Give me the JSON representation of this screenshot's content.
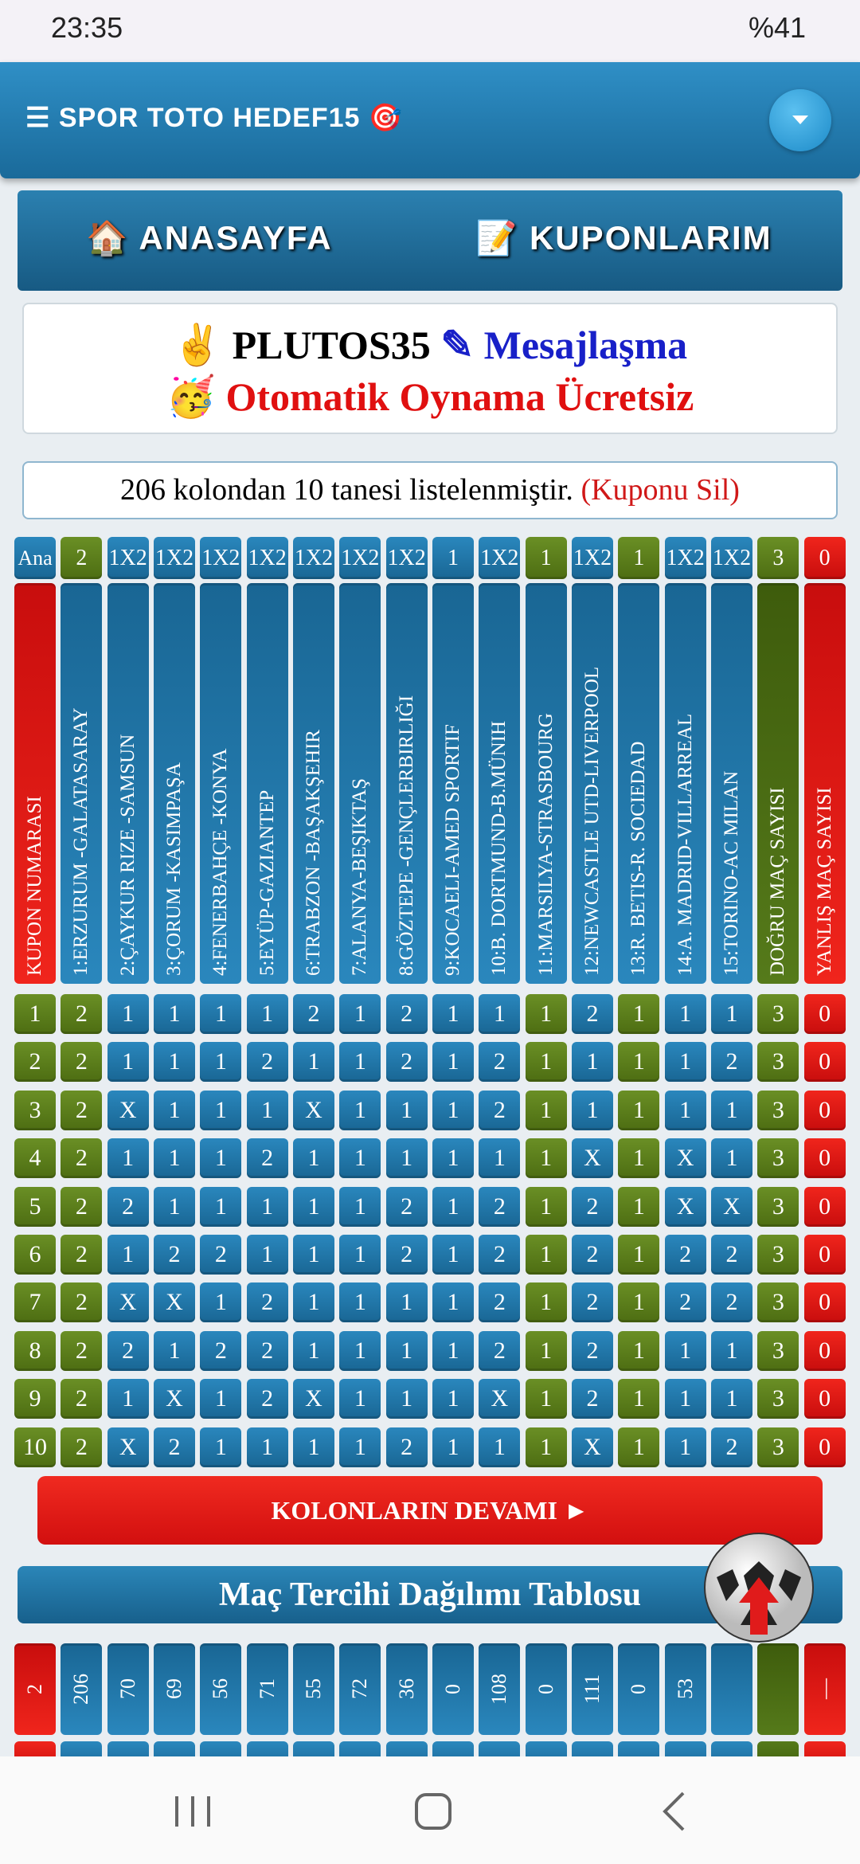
{
  "status_bar": {
    "time": "23:35",
    "battery": "%41"
  },
  "app_bar": {
    "title": "☰ SPOR TOTO HEDEF15 🎯"
  },
  "nav": {
    "home": "🏠 ANASAYFA",
    "coupons": "📝 KUPONLARIM"
  },
  "user": {
    "name": "✌ PLUTOS35",
    "link": "✎ Mesajlaşma",
    "promo": "🥳 Otomatik Oynama Ücretsiz"
  },
  "summary": {
    "text": "206 kolondan 10 tanesi listelenmiştir.",
    "link": "(Kuponu Sil)"
  },
  "table": {
    "top_row": [
      "Ana",
      "2",
      "1X2",
      "1X2",
      "1X2",
      "1X2",
      "1X2",
      "1X2",
      "1X2",
      "1",
      "1X2",
      "1",
      "1X2",
      "1",
      "1X2",
      "1X2",
      "3",
      "0"
    ],
    "headers": [
      "KUPON NUMARASI",
      "1:ERZURUM -GALATASARAY",
      "2:ÇAYKUR RIZE -SAMSUN",
      "3:ÇORUM -KASIMPAŞA",
      "4:FENERBAHÇE -KONYA",
      "5:EYÜP-GAZIANTEP",
      "6:TRABZON -BAŞAKŞEHIR",
      "7:ALANYA-BEŞIKTAŞ",
      "8:GÖZTEPE -GENÇLERBIRLIĞI",
      "9:KOCAELI-AMED SPORTIF",
      "10:B. DORTMUND-B.MÜNIH",
      "11:MARSILYA-STRASBOURG",
      "12:NEWCASTLE UTD-LIVERPOOL",
      "13:R. BETIS-R. SOCIEDAD",
      "14:A. MADRID-VILLARREAL",
      "15:TORINO-AC MILAN",
      "DOĞRU MAÇ SAYISI",
      "YANLIŞ MAÇ SAYISI"
    ],
    "rows": [
      [
        "1",
        "2",
        "1",
        "1",
        "1",
        "1",
        "2",
        "1",
        "2",
        "1",
        "1",
        "1",
        "2",
        "1",
        "1",
        "1",
        "3",
        "0"
      ],
      [
        "2",
        "2",
        "1",
        "1",
        "1",
        "2",
        "1",
        "1",
        "2",
        "1",
        "2",
        "1",
        "1",
        "1",
        "1",
        "2",
        "3",
        "0"
      ],
      [
        "3",
        "2",
        "X",
        "1",
        "1",
        "1",
        "X",
        "1",
        "1",
        "1",
        "2",
        "1",
        "1",
        "1",
        "1",
        "1",
        "3",
        "0"
      ],
      [
        "4",
        "2",
        "1",
        "1",
        "1",
        "2",
        "1",
        "1",
        "1",
        "1",
        "1",
        "1",
        "X",
        "1",
        "X",
        "1",
        "3",
        "0"
      ],
      [
        "5",
        "2",
        "2",
        "1",
        "1",
        "1",
        "1",
        "1",
        "2",
        "1",
        "2",
        "1",
        "2",
        "1",
        "X",
        "X",
        "3",
        "0"
      ],
      [
        "6",
        "2",
        "1",
        "2",
        "2",
        "1",
        "1",
        "1",
        "2",
        "1",
        "2",
        "1",
        "2",
        "1",
        "2",
        "2",
        "3",
        "0"
      ],
      [
        "7",
        "2",
        "X",
        "X",
        "1",
        "2",
        "1",
        "1",
        "1",
        "1",
        "2",
        "1",
        "2",
        "1",
        "2",
        "2",
        "3",
        "0"
      ],
      [
        "8",
        "2",
        "2",
        "1",
        "2",
        "2",
        "1",
        "1",
        "1",
        "1",
        "2",
        "1",
        "2",
        "1",
        "1",
        "1",
        "3",
        "0"
      ],
      [
        "9",
        "2",
        "1",
        "X",
        "1",
        "2",
        "X",
        "1",
        "1",
        "1",
        "X",
        "1",
        "2",
        "1",
        "1",
        "1",
        "3",
        "0"
      ],
      [
        "10",
        "2",
        "X",
        "2",
        "1",
        "1",
        "1",
        "1",
        "2",
        "1",
        "1",
        "1",
        "X",
        "1",
        "1",
        "2",
        "3",
        "0"
      ]
    ]
  },
  "more_button": "KOLONLARIN DEVAMI ►",
  "distribution": {
    "title": "Maç Tercihi Dağılımı Tablosu",
    "first_row": [
      "2",
      "206",
      "70",
      "69",
      "56",
      "71",
      "55",
      "72",
      "36",
      "0",
      "108",
      "0",
      "111",
      "0",
      "53"
    ],
    "last_cell": "—"
  }
}
